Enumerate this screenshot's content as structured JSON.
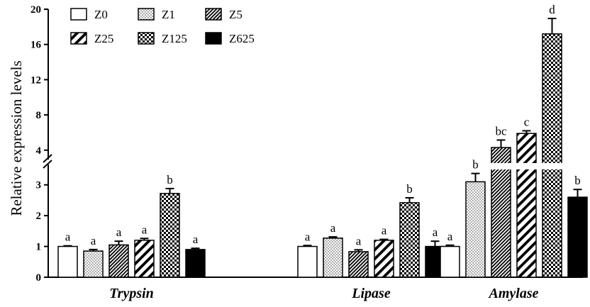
{
  "chart_data": {
    "type": "bar",
    "ylabel": "Relative expression levels",
    "categories": [
      "Trypsin",
      "Lipase",
      "Amylase"
    ],
    "y_axis": {
      "lower_segment": {
        "range": [
          0,
          3.5
        ],
        "ticks": [
          0,
          1,
          2,
          3
        ],
        "tick_labels": [
          "0",
          "1",
          "2",
          "3"
        ]
      },
      "upper_segment": {
        "range": [
          3.5,
          20
        ],
        "ticks": [
          4,
          8,
          12,
          16,
          20
        ],
        "tick_labels": [
          "4",
          "8",
          "12",
          "16",
          "20"
        ]
      },
      "broken": true
    },
    "legend_position": "top-left",
    "series": [
      {
        "name": "Z0",
        "pattern": "white",
        "values": [
          1.0,
          1.0,
          1.0
        ],
        "errors": [
          0.02,
          0.03,
          0.04
        ],
        "labels": [
          "a",
          "a",
          "a"
        ]
      },
      {
        "name": "Z1",
        "pattern": "dots",
        "values": [
          0.85,
          1.27,
          3.1
        ],
        "errors": [
          0.05,
          0.04,
          0.27
        ],
        "labels": [
          "a",
          "a",
          "b"
        ]
      },
      {
        "name": "Z5",
        "pattern": "dense-hatch",
        "values": [
          1.05,
          0.83,
          4.3
        ],
        "errors": [
          0.12,
          0.06,
          0.85
        ],
        "labels": [
          "a",
          "a",
          "bc"
        ]
      },
      {
        "name": "Z25",
        "pattern": "diagonal",
        "values": [
          1.2,
          1.2,
          5.9
        ],
        "errors": [
          0.06,
          0.03,
          0.3
        ],
        "labels": [
          "a",
          "a",
          "c"
        ]
      },
      {
        "name": "Z125",
        "pattern": "checker",
        "values": [
          2.72,
          2.42,
          17.2
        ],
        "errors": [
          0.16,
          0.16,
          1.75
        ],
        "labels": [
          "b",
          "b",
          "d"
        ]
      },
      {
        "name": "Z625",
        "pattern": "black",
        "values": [
          0.9,
          1.0,
          2.6
        ],
        "errors": [
          0.04,
          0.17,
          0.25
        ],
        "labels": [
          "a",
          "a",
          "b"
        ]
      }
    ]
  }
}
